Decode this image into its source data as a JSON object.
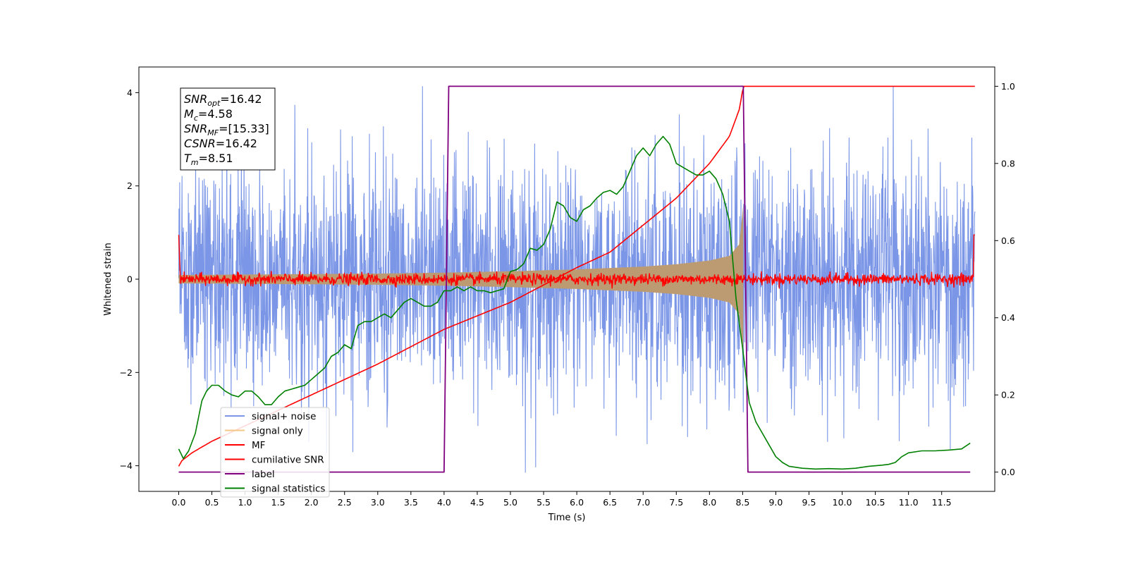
{
  "chart_data": {
    "type": "line",
    "title": "",
    "xlabel": "Time (s)",
    "ylabel": "Whitened strain",
    "xlim": [
      -0.6,
      12.3
    ],
    "ylim": [
      -4.55,
      4.55
    ],
    "y2lim": [
      -0.05,
      1.05
    ],
    "x_ticks": [
      "0.0",
      "0.5",
      "1.0",
      "1.5",
      "2.0",
      "2.5",
      "3.0",
      "3.5",
      "4.0",
      "4.5",
      "5.0",
      "5.5",
      "6.0",
      "6.5",
      "7.0",
      "7.5",
      "8.0",
      "8.5",
      "9.0",
      "9.5",
      "10.0",
      "10.5",
      "11.0",
      "11.5"
    ],
    "y_ticks": [
      "4",
      "2",
      "0",
      "−2",
      "−4"
    ],
    "y2_ticks": [
      "1.0",
      "0.8",
      "0.6",
      "0.4",
      "0.2",
      "0.0"
    ],
    "grid": false,
    "legend_placement": "lower-left",
    "annotations": [
      {
        "base": "SNR",
        "sub": "opt",
        "value": "=16.42"
      },
      {
        "base": "M",
        "sub": "c",
        "value": "=4.58"
      },
      {
        "base": "SNR",
        "sub": "MF",
        "value": "=[15.33]"
      },
      {
        "base": "CSNR",
        "sub": "",
        "value": "=16.42"
      },
      {
        "base": "T",
        "sub": "m",
        "value": "=8.51"
      }
    ],
    "series": [
      {
        "name": "signal+ noise",
        "axis": "left",
        "color": "#7b96e6",
        "noise_amplitude": 2.0,
        "x_range": [
          0.0,
          12.0
        ]
      },
      {
        "name": "signal only",
        "axis": "left",
        "color": "#f5c784",
        "envelope_x": [
          0.0,
          1.0,
          2.0,
          3.0,
          4.0,
          5.0,
          6.0,
          7.0,
          7.5,
          8.0,
          8.3,
          8.45,
          8.51
        ],
        "envelope_y": [
          0.09,
          0.1,
          0.11,
          0.12,
          0.14,
          0.17,
          0.21,
          0.27,
          0.32,
          0.4,
          0.5,
          0.75,
          1.6
        ]
      },
      {
        "name": "MF",
        "axis": "left",
        "color": "#ff0000",
        "base": 0.0,
        "x_range": [
          0.0,
          12.0
        ]
      },
      {
        "name": "cumilative SNR",
        "axis": "right",
        "color": "#ff0000",
        "x": [
          0.0,
          0.05,
          0.2,
          0.5,
          1.0,
          2.0,
          3.0,
          4.0,
          5.0,
          6.0,
          6.5,
          7.0,
          7.5,
          8.0,
          8.3,
          8.45,
          8.51,
          12.0
        ],
        "y": [
          0.015,
          0.03,
          0.05,
          0.08,
          0.12,
          0.2,
          0.28,
          0.37,
          0.44,
          0.53,
          0.57,
          0.64,
          0.71,
          0.8,
          0.87,
          0.94,
          1.0,
          1.0
        ]
      },
      {
        "name": "label",
        "axis": "right",
        "color": "#800080",
        "x": [
          0.0,
          4.0,
          4.07,
          8.51,
          8.58,
          11.93
        ],
        "y": [
          0.0,
          0.0,
          1.0,
          1.0,
          0.0,
          0.0
        ]
      },
      {
        "name": "signal statistics",
        "axis": "right",
        "color": "#008000",
        "x": [
          0.0,
          0.07,
          0.15,
          0.25,
          0.35,
          0.42,
          0.5,
          0.6,
          0.7,
          0.8,
          0.9,
          1.0,
          1.1,
          1.2,
          1.3,
          1.4,
          1.5,
          1.6,
          1.7,
          1.8,
          1.9,
          2.0,
          2.1,
          2.2,
          2.3,
          2.4,
          2.5,
          2.6,
          2.7,
          2.8,
          2.9,
          3.0,
          3.1,
          3.2,
          3.3,
          3.4,
          3.5,
          3.6,
          3.7,
          3.8,
          3.9,
          4.0,
          4.1,
          4.2,
          4.3,
          4.4,
          4.5,
          4.6,
          4.7,
          4.8,
          4.9,
          5.0,
          5.1,
          5.2,
          5.3,
          5.4,
          5.5,
          5.6,
          5.7,
          5.8,
          5.9,
          6.0,
          6.1,
          6.2,
          6.3,
          6.4,
          6.5,
          6.6,
          6.7,
          6.8,
          6.9,
          7.0,
          7.1,
          7.2,
          7.3,
          7.4,
          7.5,
          7.6,
          7.7,
          7.8,
          7.9,
          8.0,
          8.1,
          8.2,
          8.3,
          8.4,
          8.5,
          8.6,
          8.7,
          8.8,
          8.9,
          9.0,
          9.1,
          9.2,
          9.4,
          9.6,
          9.8,
          10.0,
          10.2,
          10.4,
          10.6,
          10.7,
          10.8,
          10.9,
          11.0,
          11.2,
          11.4,
          11.6,
          11.8,
          11.93
        ],
        "y": [
          0.06,
          0.035,
          0.055,
          0.1,
          0.185,
          0.21,
          0.225,
          0.225,
          0.21,
          0.2,
          0.195,
          0.21,
          0.21,
          0.195,
          0.175,
          0.175,
          0.195,
          0.21,
          0.215,
          0.22,
          0.225,
          0.24,
          0.255,
          0.27,
          0.3,
          0.31,
          0.33,
          0.32,
          0.38,
          0.39,
          0.39,
          0.4,
          0.41,
          0.4,
          0.42,
          0.44,
          0.45,
          0.44,
          0.43,
          0.43,
          0.44,
          0.47,
          0.47,
          0.48,
          0.47,
          0.48,
          0.47,
          0.47,
          0.465,
          0.47,
          0.475,
          0.52,
          0.525,
          0.54,
          0.58,
          0.575,
          0.59,
          0.63,
          0.7,
          0.69,
          0.66,
          0.65,
          0.68,
          0.69,
          0.71,
          0.725,
          0.73,
          0.72,
          0.74,
          0.78,
          0.82,
          0.84,
          0.82,
          0.85,
          0.87,
          0.85,
          0.8,
          0.79,
          0.78,
          0.77,
          0.77,
          0.78,
          0.76,
          0.72,
          0.65,
          0.45,
          0.32,
          0.18,
          0.13,
          0.1,
          0.07,
          0.04,
          0.025,
          0.015,
          0.01,
          0.008,
          0.009,
          0.008,
          0.01,
          0.015,
          0.018,
          0.02,
          0.025,
          0.04,
          0.05,
          0.055,
          0.055,
          0.057,
          0.06,
          0.075
        ]
      }
    ]
  }
}
